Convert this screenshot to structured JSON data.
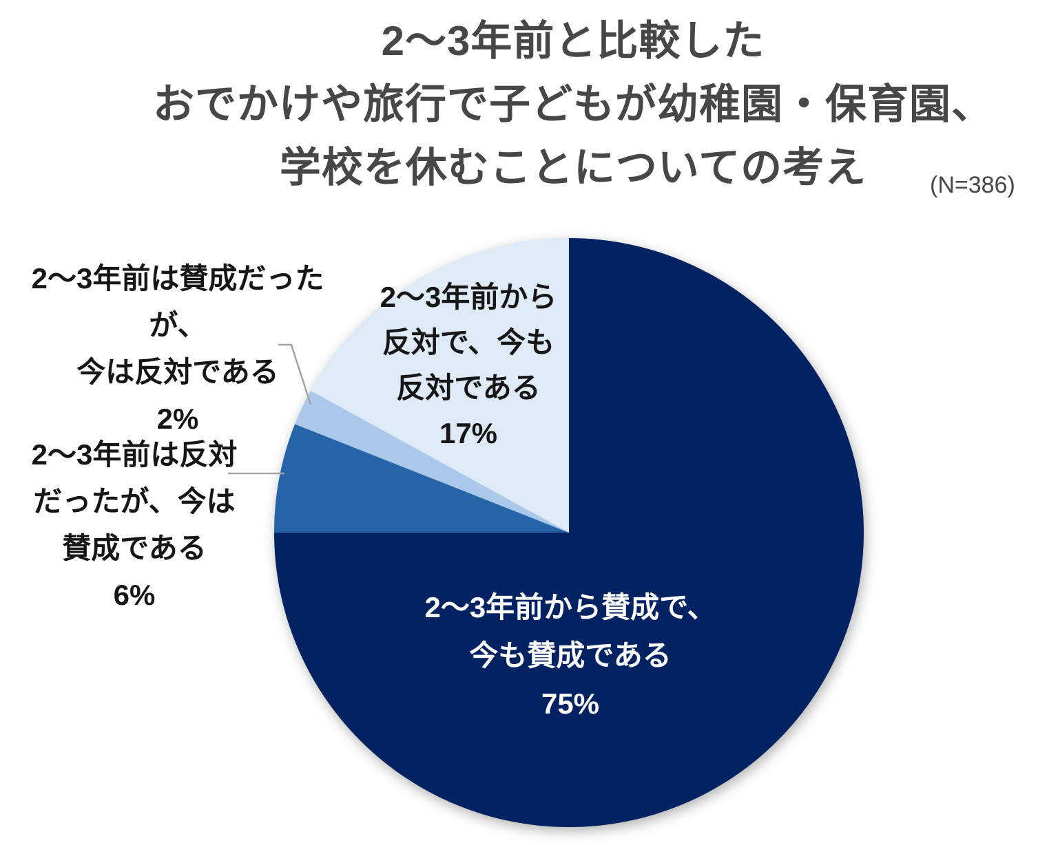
{
  "title": {
    "line1": "2〜3年前と比較した",
    "line2": "おでかけや旅行で子どもが幼稚園・保育園、",
    "line3": "学校を休むことについての考え",
    "sample_size": "(N=386)"
  },
  "colors": {
    "background": "#ffffff",
    "title_text": "#474747",
    "label_text": "#161616",
    "leader_line": "#a3a3a3"
  },
  "chart_data": {
    "type": "pie",
    "title": "2〜3年前と比較した おでかけや旅行で子どもが幼稚園・保育園、学校を休むことについての考え",
    "sample_size_label": "(N=386)",
    "n": 386,
    "start_angle_deg": 0,
    "direction": "clockwise",
    "legend_position": "none",
    "slices": [
      {
        "name": "2〜3年前から賛成で、今も賛成である",
        "pct": 75,
        "color": "#032262",
        "label_color": "#ffffff",
        "label_lines": [
          "2〜3年前から賛成で、",
          "今も賛成である",
          "75%"
        ]
      },
      {
        "name": "2〜3年前は反対だったが、今は賛成である",
        "pct": 6,
        "color": "#2464A7",
        "label_color": "#161616",
        "label_lines": [
          "2〜3年前は反対",
          "だったが、今は",
          "賛成である",
          "6%"
        ]
      },
      {
        "name": "2〜3年前は賛成だったが、今は反対である",
        "pct": 2,
        "color": "#A9C8EA",
        "label_color": "#161616",
        "label_lines": [
          "2〜3年前は賛成だったが、",
          "今は反対である",
          "2%"
        ]
      },
      {
        "name": "2〜3年前から反対で、今も反対である",
        "pct": 17,
        "color": "#DEEAF6",
        "label_color": "#161616",
        "label_lines": [
          "2〜3年前から",
          "反対で、今も",
          "反対である",
          "17%"
        ]
      }
    ]
  }
}
